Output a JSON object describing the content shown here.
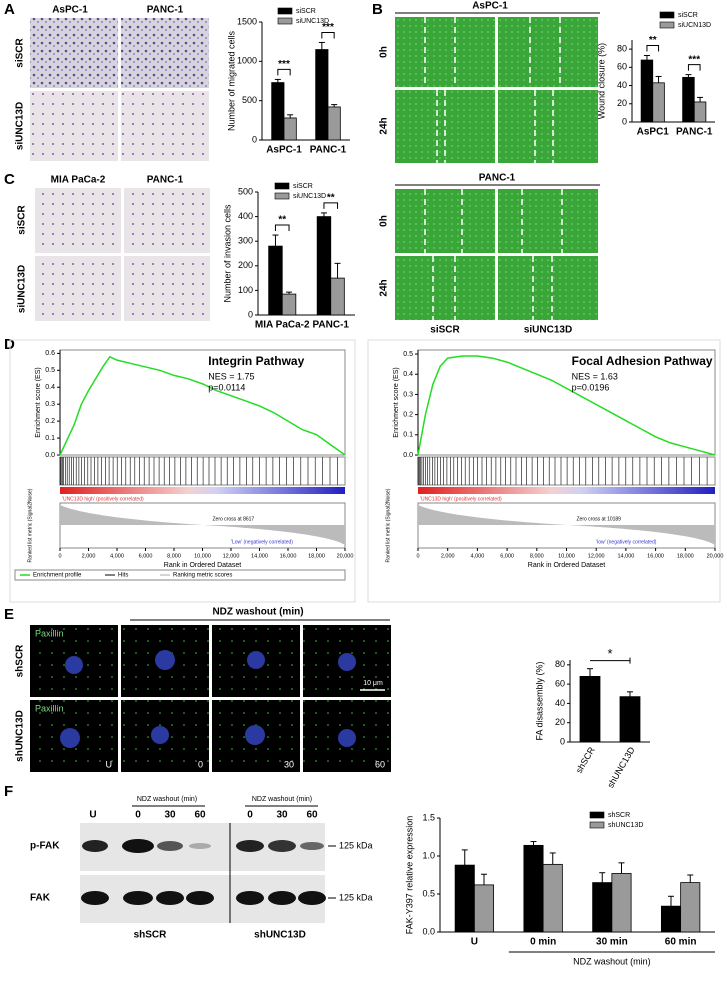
{
  "labels": {
    "panels": [
      "A",
      "B",
      "C",
      "D",
      "E",
      "F"
    ],
    "a_cols": [
      "AsPC-1",
      "PANC-1"
    ],
    "a_rows": [
      "siSCR",
      "siUNC13D"
    ],
    "b_title1": "AsPC-1",
    "b_rows1": [
      "0h",
      "24h"
    ],
    "b_title2": "PANC-1",
    "b_rows2": [
      "0h",
      "24h"
    ],
    "b_cols": [
      "siSCR",
      "siUNC13D"
    ],
    "c_cols": [
      "MIA PaCa-2",
      "PANC-1"
    ],
    "c_rows": [
      "siSCR",
      "siUNC13D"
    ],
    "e_top": "NDZ washout (min)",
    "e_stain": [
      "Paxillin",
      "Paxillin"
    ],
    "e_rows": [
      "shSCR",
      "shUNC13D"
    ],
    "e_times": [
      "U",
      "0",
      "30",
      "60"
    ],
    "e_scale": "10 μm",
    "f_lanes": [
      "U",
      "0",
      "30",
      "60",
      "0",
      "30",
      "60"
    ],
    "f_ndz": [
      "NDZ washout (min)",
      "NDZ washout (min)"
    ],
    "f_rows": [
      "p-FAK",
      "FAK"
    ],
    "f_kda": [
      "125 kDa",
      "125 kDa"
    ],
    "f_groups": [
      "shSCR",
      "shUNC13D"
    ]
  },
  "chart_data": [
    {
      "type": "bar",
      "ylabel": "Number of migrated cells",
      "categories": [
        "AsPC-1",
        "PANC-1"
      ],
      "series": [
        {
          "name": "siSCR",
          "color": "#000000",
          "values": [
            730,
            1150
          ],
          "errors": [
            40,
            90
          ]
        },
        {
          "name": "siUNC13D",
          "color": "#9a9a9a",
          "values": [
            280,
            420
          ],
          "errors": [
            40,
            30
          ]
        }
      ],
      "ylim": [
        0,
        1500
      ],
      "yticks": [
        0,
        500,
        1000,
        1500
      ],
      "annotations": [
        "***",
        "***"
      ]
    },
    {
      "type": "bar",
      "ylabel": "Wound closure (%)",
      "categories": [
        "AsPC1",
        "PANC-1"
      ],
      "series": [
        {
          "name": "siSCR",
          "color": "#000000",
          "values": [
            68,
            49
          ],
          "errors": [
            5,
            3
          ]
        },
        {
          "name": "siUCN13D",
          "color": "#9a9a9a",
          "values": [
            43,
            22
          ],
          "errors": [
            7,
            5
          ]
        }
      ],
      "ylim": [
        0,
        90
      ],
      "yticks": [
        0,
        20,
        40,
        60,
        80
      ],
      "annotations": [
        "**",
        "***"
      ]
    },
    {
      "type": "bar",
      "ylabel": "Number of invasion cells",
      "categories": [
        "MIA PaCa-2",
        "PANC-1"
      ],
      "series": [
        {
          "name": "siSCR",
          "color": "#000000",
          "values": [
            280,
            400
          ],
          "errors": [
            45,
            15
          ]
        },
        {
          "name": "siUNC13D",
          "color": "#9a9a9a",
          "values": [
            85,
            150
          ],
          "errors": [
            8,
            60
          ]
        }
      ],
      "ylim": [
        0,
        500
      ],
      "yticks": [
        0,
        100,
        200,
        300,
        400,
        500
      ],
      "annotations": [
        "**",
        "**"
      ]
    },
    {
      "type": "line",
      "title": "Integrin Pathway",
      "annotations": [
        "NES = 1.75",
        "p=0.0114"
      ],
      "ylabel": "Enrichment score (ES)",
      "xlabel": "Rank in Ordered Dataset",
      "zero_cross": "Zero cross at 8617",
      "pos_label": "'UNC13D high' (positively correlated)",
      "neg_label": "'Low' (negatively correlated)",
      "ranked_label": "Ranked list metric (Signal2Noise)",
      "other_legend": [
        "Hits",
        "Ranking metric scores"
      ],
      "x": [
        0,
        1000,
        1500,
        2000,
        2500,
        3000,
        3500,
        4000,
        5000,
        6000,
        7000,
        8000,
        9000,
        10000,
        11000,
        12000,
        13000,
        14000,
        15000,
        16000,
        17000,
        18000,
        19000,
        20000
      ],
      "series": [
        {
          "name": "Enrichment profile",
          "color": "#22dd22",
          "values": [
            0,
            0.18,
            0.3,
            0.38,
            0.45,
            0.52,
            0.58,
            0.56,
            0.54,
            0.52,
            0.5,
            0.47,
            0.45,
            0.42,
            0.38,
            0.35,
            0.32,
            0.29,
            0.25,
            0.2,
            0.15,
            0.12,
            0.06,
            0
          ]
        }
      ],
      "ylim": [
        0,
        0.62
      ],
      "yticks": [
        {
          "value": 0,
          "label": "0.0"
        },
        0.1,
        0.2,
        0.3,
        0.4,
        0.5,
        0.6
      ],
      "xlim": [
        0,
        20000
      ],
      "xticks": [
        0,
        {
          "value": 2000,
          "label": "2,000"
        },
        {
          "value": 4000,
          "label": "4,000"
        },
        {
          "value": 6000,
          "label": "6,000"
        },
        {
          "value": 8000,
          "label": "8,000"
        },
        {
          "value": 10000,
          "label": "10,000"
        },
        {
          "value": 12000,
          "label": "12,000"
        },
        {
          "value": 14000,
          "label": "14,000"
        },
        {
          "value": 16000,
          "label": "16,000"
        },
        {
          "value": 18000,
          "label": "18,000"
        },
        {
          "value": 20000,
          "label": "20,000"
        }
      ]
    },
    {
      "type": "line",
      "title": "Focal Adhesion Pathway",
      "annotations": [
        "NES = 1.63",
        "p=0.0196"
      ],
      "ylabel": "Enrichment score (ES)",
      "xlabel": "Rank in Ordered Dataset",
      "zero_cross": "Zero cross at 10189",
      "pos_label": "'UNC13D high' (positively correlated)",
      "neg_label": "'low' (negatively correlated)",
      "ranked_label": "Ranked list metric (Signal2Noise)",
      "x": [
        0,
        500,
        1000,
        1500,
        2000,
        3000,
        4000,
        5000,
        6000,
        7000,
        8000,
        9000,
        10000,
        11000,
        12000,
        13000,
        14000,
        15000,
        16000,
        17000,
        18000,
        19000,
        20000
      ],
      "series": [
        {
          "name": "Enrichment profile",
          "color": "#22dd22",
          "values": [
            0,
            0.2,
            0.35,
            0.44,
            0.48,
            0.49,
            0.49,
            0.48,
            0.46,
            0.43,
            0.4,
            0.37,
            0.33,
            0.29,
            0.25,
            0.21,
            0.17,
            0.13,
            0.09,
            0.06,
            0.04,
            0.02,
            0
          ]
        }
      ],
      "ylim": [
        0,
        0.52
      ],
      "yticks": [
        {
          "value": 0,
          "label": "0.0"
        },
        0.1,
        0.2,
        0.3,
        0.4,
        0.5
      ],
      "xlim": [
        0,
        20000
      ],
      "xticks": [
        0,
        {
          "value": 2000,
          "label": "2,000"
        },
        {
          "value": 4000,
          "label": "4,000"
        },
        {
          "value": 6000,
          "label": "6,000"
        },
        {
          "value": 8000,
          "label": "8,000"
        },
        {
          "value": 10000,
          "label": "10,000"
        },
        {
          "value": 12000,
          "label": "12,000"
        },
        {
          "value": 14000,
          "label": "14,000"
        },
        {
          "value": 16000,
          "label": "16,000"
        },
        {
          "value": 18000,
          "label": "18,000"
        },
        {
          "value": 20000,
          "label": "20,000"
        }
      ]
    },
    {
      "type": "bar",
      "ylabel": "FA disassembly (%)",
      "categories": [
        "shSCR",
        "shUNC13D"
      ],
      "rotate_xticks": true,
      "series": [
        {
          "color": "#000000",
          "values": [
            68,
            47
          ],
          "errors": [
            8,
            5
          ]
        }
      ],
      "ylim": [
        0,
        85
      ],
      "yticks": [
        0,
        20,
        40,
        60,
        80
      ],
      "annotations": [
        "*"
      ]
    },
    {
      "type": "bar",
      "ylabel": "FAK-Y397 relative expression",
      "xlabel": "NDZ washout (min)",
      "categories": [
        "U",
        "0 min",
        "30 min",
        "60 min"
      ],
      "series": [
        {
          "name": "shSCR",
          "color": "#000000",
          "values": [
            0.88,
            1.14,
            0.65,
            0.34
          ],
          "errors": [
            0.2,
            0.05,
            0.13,
            0.13
          ]
        },
        {
          "name": "shUNC13D",
          "color": "#9a9a9a",
          "values": [
            0.62,
            0.89,
            0.77,
            0.65
          ],
          "errors": [
            0.14,
            0.15,
            0.14,
            0.1
          ]
        }
      ],
      "ylim": [
        0,
        1.5
      ],
      "yticks": [
        {
          "value": 0,
          "label": "0.0"
        },
        0.5,
        {
          "value": 1,
          "label": "1.0"
        },
        1.5
      ]
    }
  ]
}
